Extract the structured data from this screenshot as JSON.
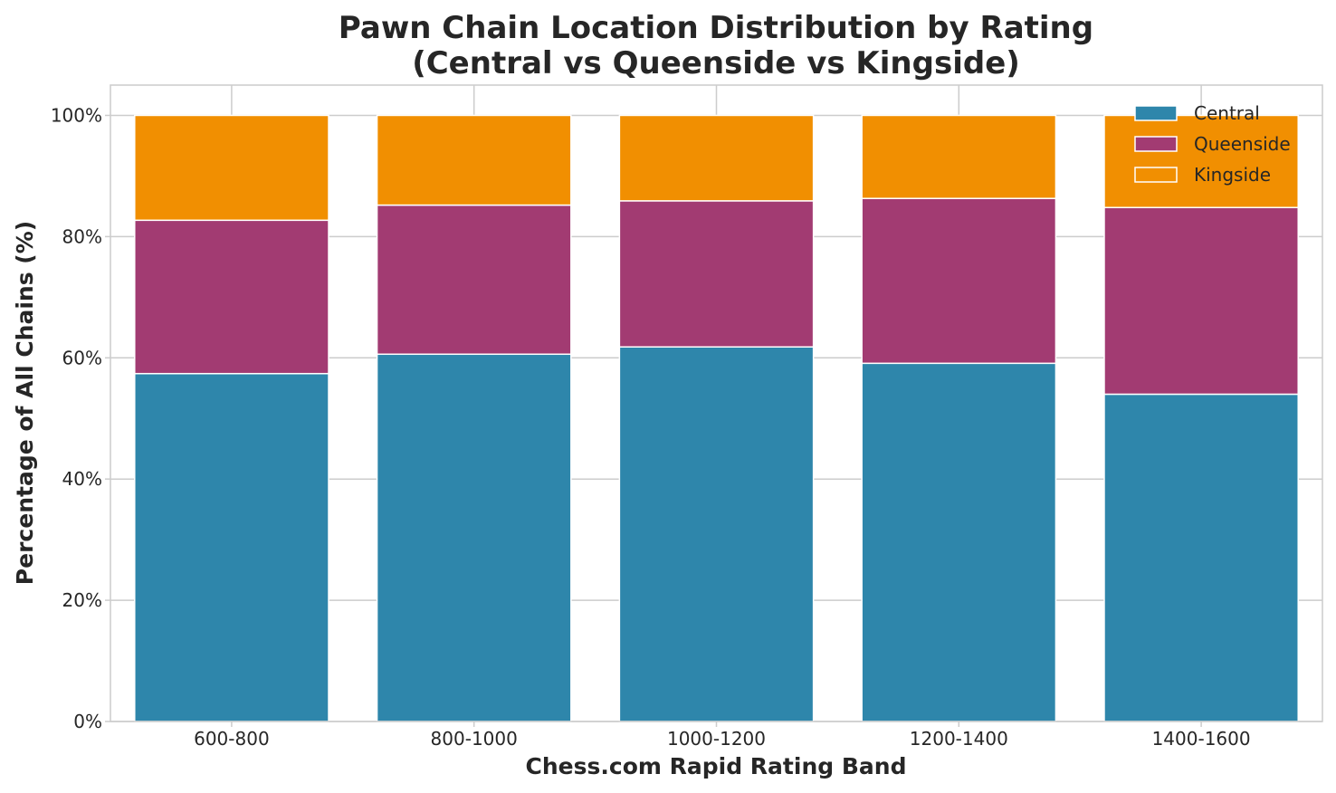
{
  "chart_data": {
    "type": "bar",
    "stacked": true,
    "title": "Pawn Chain Location Distribution by Rating\n(Central vs Queenside vs Kingside)",
    "title_lines": [
      "Pawn Chain Location Distribution by Rating",
      "(Central vs Queenside vs Kingside)"
    ],
    "xlabel": "Chess.com Rapid Rating Band",
    "ylabel": "Percentage of All Chains (%)",
    "categories": [
      "600-800",
      "800-1000",
      "1000-1200",
      "1200-1400",
      "1400-1600"
    ],
    "series": [
      {
        "name": "Central",
        "color": "#2e86ab",
        "values": [
          57.4,
          60.6,
          61.8,
          59.1,
          54.0
        ]
      },
      {
        "name": "Queenside",
        "color": "#a23b72",
        "values": [
          25.3,
          24.6,
          24.1,
          27.2,
          30.8
        ]
      },
      {
        "name": "Kingside",
        "color": "#f18f01",
        "values": [
          17.3,
          14.8,
          14.1,
          13.7,
          15.2
        ]
      }
    ],
    "ylim": [
      0,
      105
    ],
    "yticks": [
      0,
      20,
      40,
      60,
      80,
      100
    ],
    "ytick_labels": [
      "0%",
      "20%",
      "40%",
      "60%",
      "80%",
      "100%"
    ],
    "grid": true,
    "legend_position": "top-right"
  }
}
